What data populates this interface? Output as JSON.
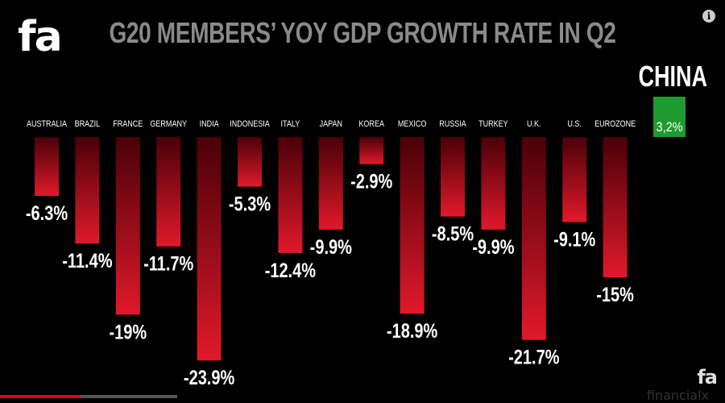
{
  "logo_text": "fa",
  "logo_small_text": "fa",
  "info_icon": "info-icon",
  "watermark": "financialx",
  "chart_data": {
    "type": "bar",
    "title": "G20 MEMBERS’ YOY GDP GROWTH RATE IN Q2",
    "xlabel": "",
    "ylabel": "",
    "categories": [
      "AUSTRALIA",
      "BRAZIL",
      "FRANCE",
      "GERMANY",
      "INDIA",
      "INDONESIA",
      "ITALY",
      "JAPAN",
      "KOREA",
      "MEXICO",
      "RUSSIA",
      "TURKEY",
      "U.K.",
      "U.S.",
      "EUROZONE"
    ],
    "values": [
      -6.3,
      -11.4,
      -19,
      -11.7,
      -23.9,
      -5.3,
      -12.4,
      -9.9,
      -2.9,
      -18.9,
      -8.5,
      -9.9,
      -21.7,
      -9.1,
      -15
    ],
    "value_labels": [
      "-6.3%",
      "-11.4%",
      "-19%",
      "-11.7%",
      "-23.9%",
      "-5.3%",
      "-12.4%",
      "-9.9%",
      "-2.9%",
      "-18.9%",
      "-8.5%",
      "-9.9%",
      "-21.7%",
      "-9.1%",
      "-15%"
    ],
    "highlight": {
      "category": "CHINA",
      "value": 3.2,
      "value_label": "3,2%"
    },
    "colors": {
      "negative_top": "#4a0008",
      "negative_bottom": "#e0192b",
      "positive": "#1e9a2e",
      "title": "#8a8a8a",
      "background": "#000000"
    },
    "ylim": [
      -24,
      3.2
    ],
    "grid": false
  }
}
